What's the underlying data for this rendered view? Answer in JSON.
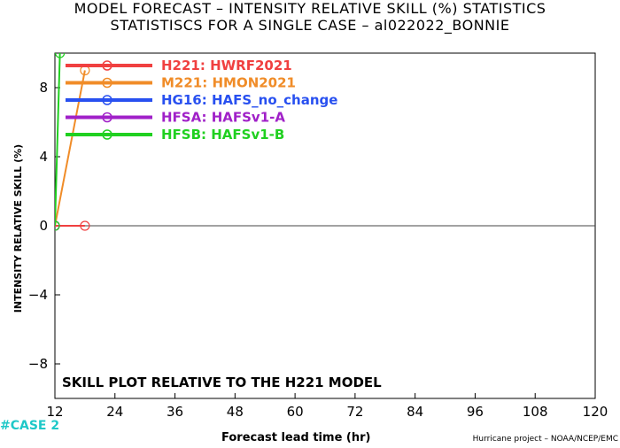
{
  "titles": {
    "line1": "MODEL FORECAST – INTENSITY RELATIVE SKILL (%) STATISTICS",
    "line2": "STATISTISCS FOR A SINGLE CASE – al022022_BONNIE"
  },
  "annotation": "SKILL PLOT RELATIVE TO THE H221 MODEL",
  "case_label": "#CASE  2",
  "credit": "Hurricane project – NOAA/NCEP/EMC",
  "colors": {
    "H221": "#f04040",
    "M221": "#f08c28",
    "HG16": "#2850f0",
    "HFSA": "#a020c8",
    "HFSB": "#20d020"
  },
  "chart_data": {
    "type": "line",
    "xlabel": "Forecast lead time (hr)",
    "ylabel": "INTENSITY RELATIVE SKILL (%)",
    "xlim": [
      12,
      120
    ],
    "ylim": [
      -10,
      10
    ],
    "xticks": [
      12,
      24,
      36,
      48,
      60,
      72,
      84,
      96,
      108,
      120
    ],
    "yticks": [
      -8,
      -4,
      0,
      4,
      8
    ],
    "series": [
      {
        "name": "H221: HWRF2021",
        "key": "H221",
        "x": [
          12,
          18
        ],
        "y": [
          0,
          0
        ]
      },
      {
        "name": "M221: HMON2021",
        "key": "M221",
        "x": [
          12,
          18
        ],
        "y": [
          0,
          9
        ]
      },
      {
        "name": "HG16: HAFS_no_change",
        "key": "HG16",
        "x": [
          12
        ],
        "y": [
          0
        ]
      },
      {
        "name": "HFSA: HAFSv1-A",
        "key": "HFSA",
        "x": [
          12
        ],
        "y": [
          0
        ]
      },
      {
        "name": "HFSB: HAFSv1-B",
        "key": "HFSB",
        "x": [
          12,
          13
        ],
        "y": [
          0,
          10
        ]
      }
    ]
  }
}
